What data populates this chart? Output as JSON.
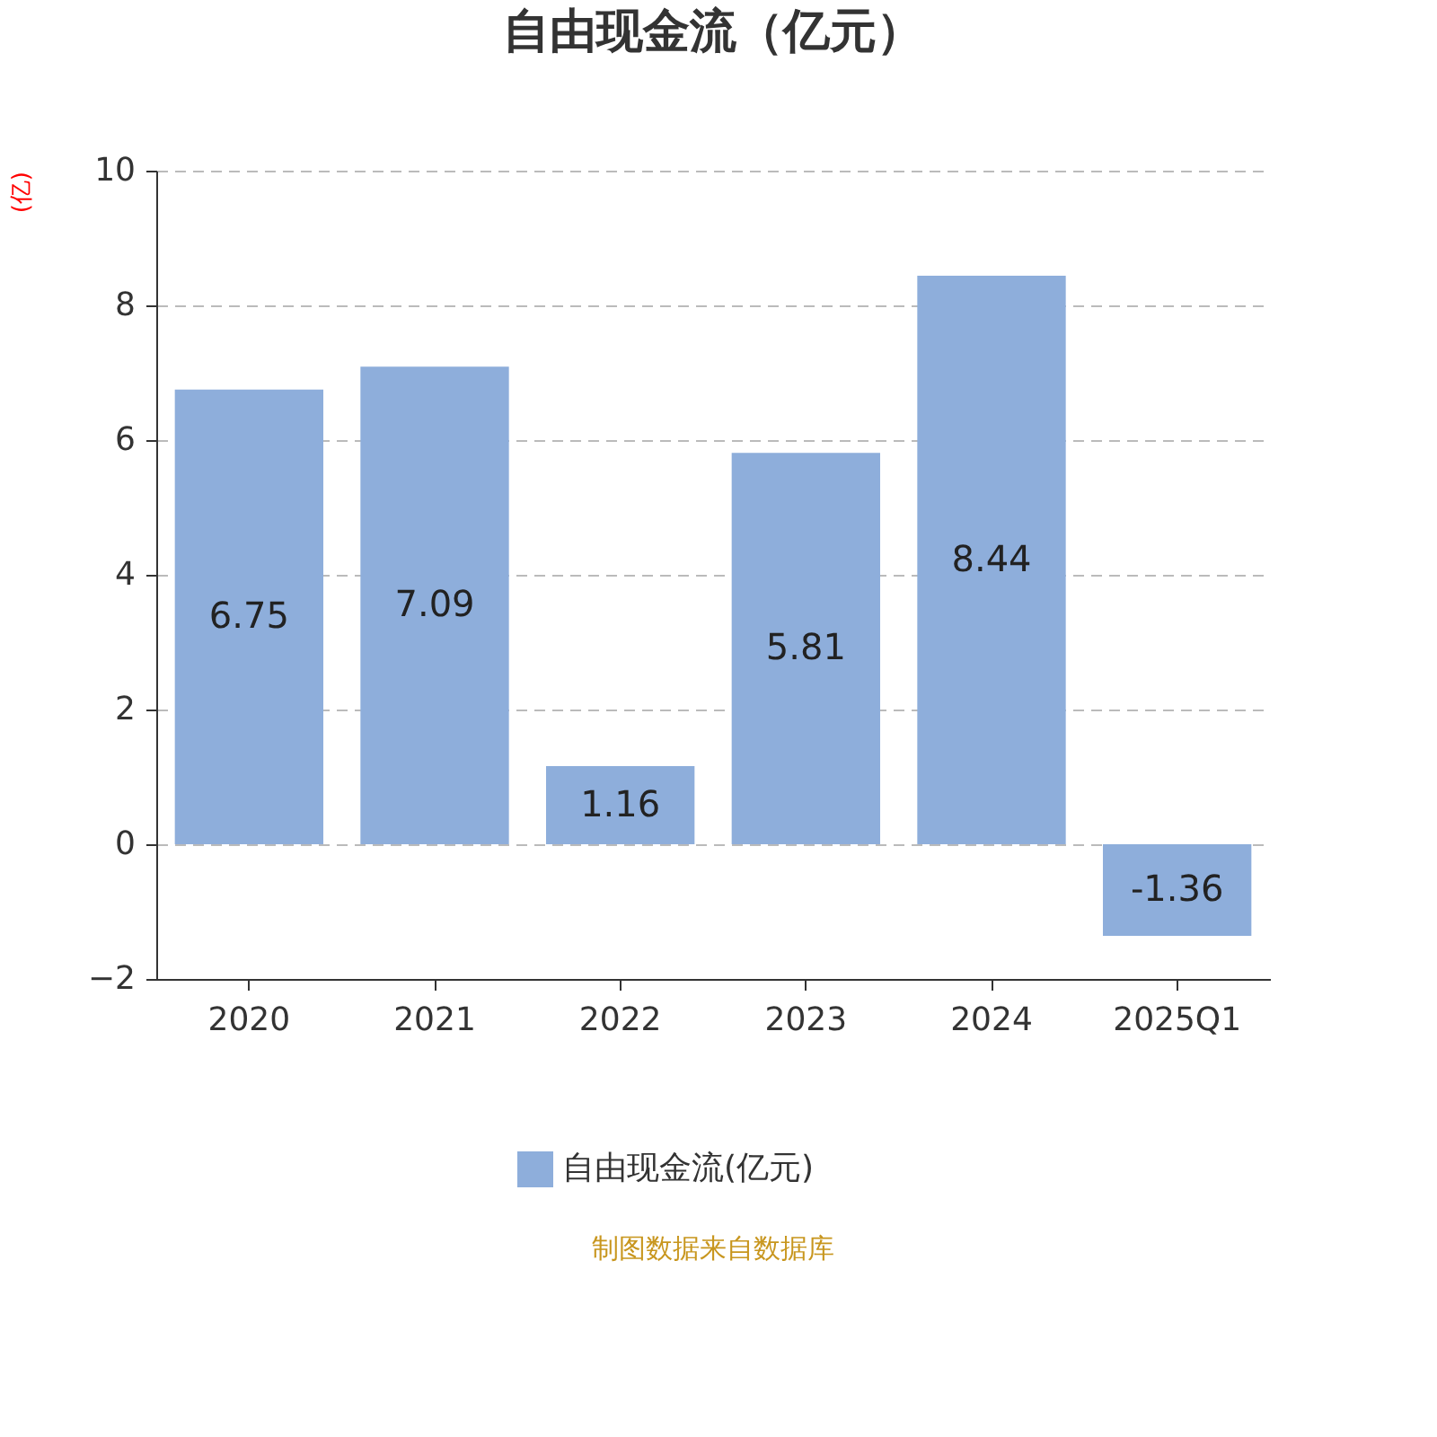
{
  "chart_data": {
    "type": "bar",
    "title": "自由现金流（亿元）",
    "ylabel": "(亿)",
    "categories": [
      "2020",
      "2021",
      "2022",
      "2023",
      "2024",
      "2025Q1"
    ],
    "series": [
      {
        "name": "自由现金流(亿元)",
        "color": "#8eaedb",
        "values": [
          6.75,
          7.09,
          1.16,
          5.81,
          8.44,
          -1.36
        ]
      }
    ],
    "ylim": [
      -2,
      10
    ],
    "yticks": [
      -2,
      0,
      2,
      4,
      6,
      8,
      10
    ],
    "grid": "y",
    "legend": "bottom",
    "data_labels": true,
    "annotations": [
      "制图数据来自数据库"
    ]
  }
}
